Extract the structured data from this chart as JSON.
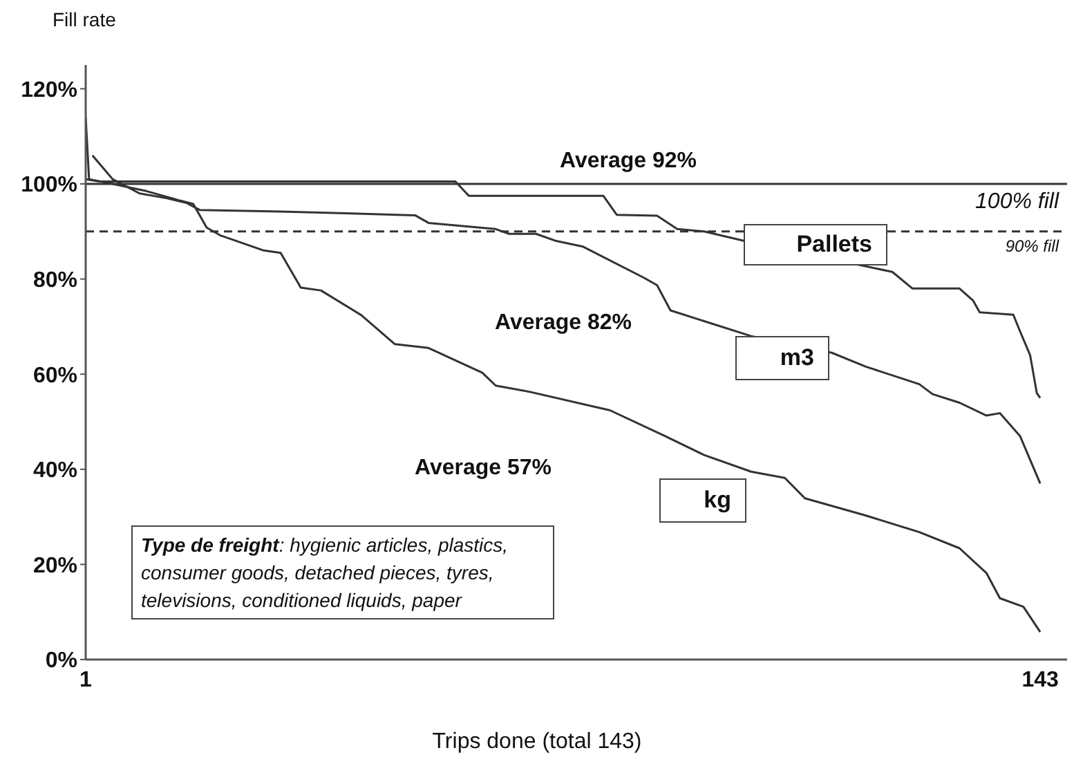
{
  "chart_data": {
    "type": "line",
    "ylabel": "Fill rate",
    "xlabel": "Trips done (total 143)",
    "xlim": [
      1,
      147
    ],
    "xticks": [
      1,
      143
    ],
    "ylim": [
      0,
      125
    ],
    "yticks": [
      {
        "value": 0,
        "label": "0%"
      },
      {
        "value": 20,
        "label": "20%"
      },
      {
        "value": 40,
        "label": "40%"
      },
      {
        "value": 60,
        "label": "60%"
      },
      {
        "value": 80,
        "label": "80%"
      },
      {
        "value": 100,
        "label": "100%"
      },
      {
        "value": 120,
        "label": "120%"
      }
    ],
    "grid": false,
    "legend": false,
    "marker": "none",
    "line_style": "solid",
    "series": [
      {
        "name": "Pallets",
        "color": "#333333",
        "x": [
          1,
          3,
          10,
          30,
          56,
          58,
          78,
          80,
          86,
          89,
          93,
          99,
          121,
          124,
          131,
          133,
          134,
          139,
          140,
          141.5,
          142.5,
          143
        ],
        "values": [
          101,
          100.5,
          100.5,
          100.5,
          100.5,
          97.5,
          97.5,
          93.5,
          93.3,
          90.5,
          90,
          88,
          81.5,
          78,
          78,
          75.5,
          73,
          72.5,
          69,
          64,
          56,
          55
        ]
      },
      {
        "name": "m3",
        "color": "#333333",
        "x": [
          2,
          5,
          9,
          13,
          16,
          18,
          30,
          50,
          52,
          62,
          64,
          68,
          71,
          75,
          84,
          86,
          88,
          100,
          112,
          117,
          125,
          127,
          131,
          135,
          137,
          140,
          143
        ],
        "values": [
          106,
          101,
          98,
          97,
          96,
          94.5,
          94.2,
          93.4,
          91.8,
          90.5,
          89.5,
          89.5,
          88,
          86.8,
          80.3,
          78.7,
          73.4,
          68,
          64.5,
          61.6,
          57.9,
          55.8,
          54,
          51.3,
          51.8,
          47,
          37
        ]
      },
      {
        "name": "kg",
        "color": "#333333",
        "x": [
          1,
          1.5,
          5,
          10,
          15,
          17,
          19,
          21,
          27.5,
          30,
          33,
          36,
          42,
          47,
          52,
          60,
          62,
          67,
          79,
          87,
          93,
          100,
          105,
          108,
          117,
          125,
          131,
          135,
          137,
          140.5,
          143
        ],
        "values": [
          114,
          101,
          100,
          98.5,
          96.5,
          95.8,
          90.8,
          89.2,
          86,
          85.5,
          78.2,
          77.6,
          72.4,
          66.3,
          65.5,
          60.3,
          57.6,
          56.3,
          52.4,
          47.1,
          43,
          39.5,
          38.2,
          33.9,
          30.3,
          26.8,
          23.4,
          18.2,
          12.9,
          11.1,
          5.8
        ]
      }
    ],
    "ref_lines": [
      {
        "axis": "y",
        "value": 100,
        "label": "100% fill",
        "line_style": "solid",
        "color": "#333333"
      },
      {
        "axis": "y",
        "value": 90,
        "label": "90% fill",
        "line_style": "dashed",
        "color": "#333333"
      }
    ],
    "annotations": [
      "Average 92%",
      "Average 82%",
      "Average 57%",
      "Type de freight: hygienic articles, plastics, consumer goods, detached pieces, tyres, televisions, conditioned liquids, paper"
    ]
  }
}
